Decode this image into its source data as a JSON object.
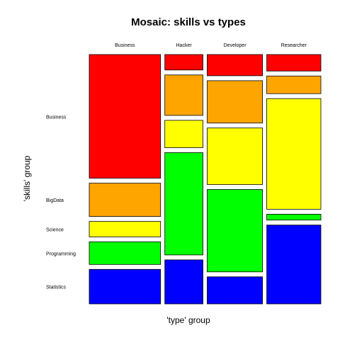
{
  "chart_data": {
    "type": "mosaic",
    "title": "Mosaic: skills vs types",
    "xlabel": "'type' group",
    "ylabel": "'skills' group",
    "columns": [
      "Business",
      "Hacker",
      "Developer",
      "Researcher"
    ],
    "rows": [
      "Business",
      "BigData",
      "Science",
      "Programming",
      "Statistics"
    ],
    "column_shares": [
      0.29,
      0.155,
      0.225,
      0.22
    ],
    "cells": [
      [
        0.52,
        0.14,
        0.065,
        0.095,
        0.145
      ],
      [
        0.065,
        0.17,
        0.115,
        0.43,
        0.185
      ],
      [
        0.09,
        0.18,
        0.24,
        0.35,
        0.115
      ],
      [
        0.07,
        0.075,
        0.47,
        0.025,
        0.335
      ]
    ],
    "colors": [
      "#ff0000",
      "#ffa500",
      "#ffff00",
      "#00ff00",
      "#0000ff"
    ],
    "grid": false,
    "legend": "none"
  }
}
